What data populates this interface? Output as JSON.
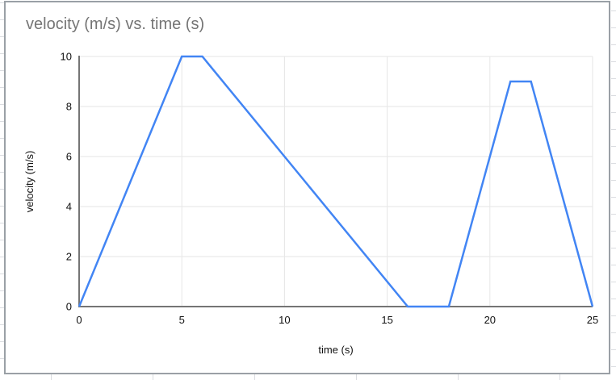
{
  "app_context": {
    "surface": "spreadsheet-embedded-chart",
    "spreadsheet_gridline_color": "#dadce0",
    "chart_border_color": "#9aa0a6"
  },
  "chart": {
    "title_color": "#757575",
    "tick_label_color": "#111111"
  },
  "chart_data": {
    "type": "line",
    "title": "velocity (m/s) vs. time (s)",
    "xlabel": "time (s)",
    "ylabel": "velocity (m/s)",
    "series": [
      {
        "name": "velocity",
        "x": [
          0,
          5,
          6,
          16,
          18,
          21,
          22,
          25
        ],
        "y": [
          0,
          10,
          10,
          0,
          0,
          9,
          9,
          0
        ],
        "color": "#4285f4"
      }
    ],
    "xlim": [
      0,
      25
    ],
    "ylim": [
      0,
      10
    ],
    "xticks": [
      0,
      5,
      10,
      15,
      20,
      25
    ],
    "yticks": [
      0,
      2,
      4,
      6,
      8,
      10
    ],
    "grid": true,
    "gridline_color": "#e6e6e6",
    "axis_color": "#757575",
    "legend": false
  }
}
